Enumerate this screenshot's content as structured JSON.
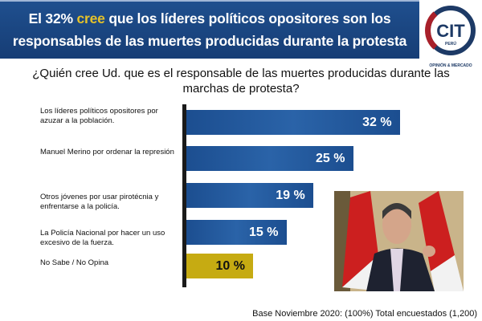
{
  "header": {
    "title_pre": "El 32% ",
    "title_highlight": "cree",
    "title_post": " que los líderes políticos opositores son los responsables de las muertes producidas durante la protesta"
  },
  "logo": {
    "text": "CIT",
    "sub": "PERÚ",
    "tagline": "OPINIÓN & MERCADO"
  },
  "chart_data": {
    "type": "bar",
    "orientation": "horizontal",
    "title": "¿Quién cree Ud. que es el responsable de las muertes producidas durante las marchas de protesta?",
    "categories": [
      "Los líderes políticos opositores por azuzar a la población.",
      "Manuel Merino por ordenar la represión",
      "Otros jóvenes por usar pirotécnia y enfrentarse a la policía.",
      "La Policía Nacional por hacer un uso excesivo de la fuerza.",
      "No Sabe / No Opina"
    ],
    "values": [
      32,
      25,
      19,
      15,
      10
    ],
    "labels": [
      "32 %",
      "25 %",
      "19 %",
      "15 %",
      "10 %"
    ],
    "colors": [
      "#1f5296",
      "#1f5296",
      "#1f5296",
      "#1f5296",
      "#c6ab12"
    ],
    "grid": false
  },
  "footer": "Base Noviembre 2020: (100%) Total encuestados (1,200)"
}
